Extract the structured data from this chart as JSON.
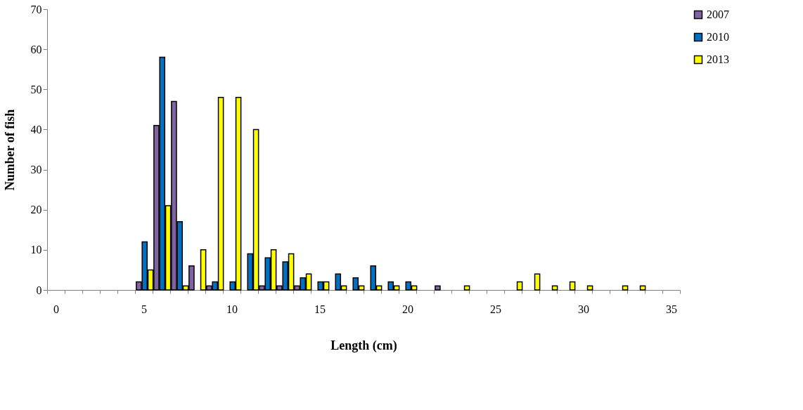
{
  "chart_data": {
    "type": "bar",
    "xlabel": "Length (cm)",
    "ylabel": "Number of fish",
    "categories": [
      "0",
      null,
      null,
      null,
      null,
      "5",
      null,
      null,
      null,
      null,
      "10",
      null,
      null,
      null,
      null,
      "15",
      null,
      null,
      null,
      null,
      "20",
      null,
      null,
      null,
      null,
      "25",
      null,
      null,
      null,
      null,
      "30",
      null,
      null,
      null,
      null,
      "35"
    ],
    "series": [
      {
        "name": "2007",
        "color": "#8064a2",
        "values": [
          null,
          null,
          null,
          null,
          null,
          2,
          41,
          47,
          6,
          1,
          null,
          null,
          1,
          1,
          1,
          null,
          null,
          null,
          null,
          null,
          null,
          null,
          1,
          null,
          null,
          null,
          null,
          null,
          null,
          null,
          null,
          null,
          null,
          null,
          null,
          null
        ]
      },
      {
        "name": "2010",
        "color": "#0070c0",
        "values": [
          null,
          null,
          null,
          null,
          null,
          12,
          58,
          17,
          null,
          2,
          2,
          9,
          8,
          7,
          3,
          2,
          4,
          3,
          6,
          2,
          2,
          null,
          null,
          null,
          null,
          null,
          null,
          null,
          null,
          null,
          null,
          null,
          null,
          null,
          null,
          null
        ]
      },
      {
        "name": "2013",
        "color": "#ffff00",
        "values": [
          null,
          null,
          null,
          null,
          null,
          5,
          21,
          1,
          10,
          48,
          48,
          40,
          10,
          9,
          4,
          2,
          1,
          1,
          1,
          1,
          1,
          null,
          null,
          1,
          null,
          null,
          2,
          4,
          1,
          2,
          1,
          null,
          1,
          1,
          null,
          null
        ]
      }
    ],
    "ylim": [
      0,
      70
    ],
    "yticks": [
      0,
      10,
      20,
      30,
      40,
      50,
      60,
      70
    ],
    "grid": false,
    "legend": "top right"
  }
}
